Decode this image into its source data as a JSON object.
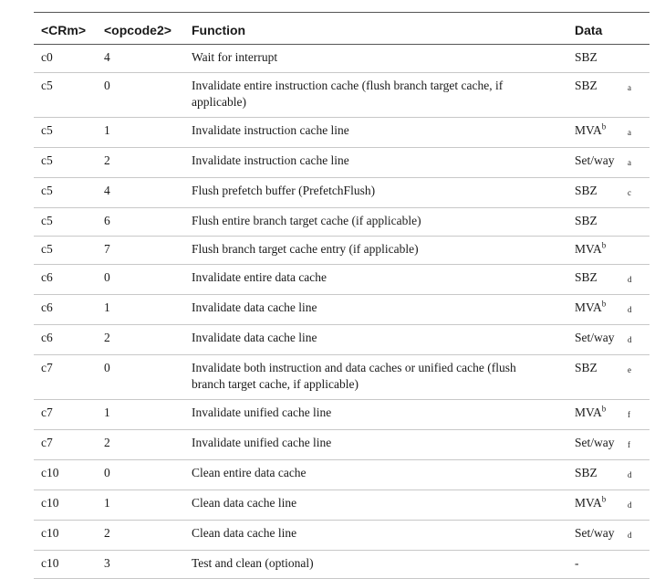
{
  "table": {
    "title": "",
    "headers": {
      "crm": "<CRm>",
      "opcode2": "<opcode2>",
      "function": "Function",
      "data": "Data"
    },
    "rows": [
      {
        "crm": "c0",
        "opcode2": "4",
        "function": "Wait for interrupt",
        "data": "SBZ",
        "data_sup": "",
        "note": ""
      },
      {
        "crm": "c5",
        "opcode2": "0",
        "function": "Invalidate entire instruction cache (flush branch target cache, if applicable)",
        "data": "SBZ",
        "data_sup": "",
        "note": "a"
      },
      {
        "crm": "c5",
        "opcode2": "1",
        "function": "Invalidate instruction cache line",
        "data": "MVA",
        "data_sup": "b",
        "note": "a"
      },
      {
        "crm": "c5",
        "opcode2": "2",
        "function": "Invalidate instruction cache line",
        "data": "Set/way",
        "data_sup": "",
        "note": "a"
      },
      {
        "crm": "c5",
        "opcode2": "4",
        "function": "Flush prefetch buffer (PrefetchFlush)",
        "data": "SBZ",
        "data_sup": "",
        "note": "c"
      },
      {
        "crm": "c5",
        "opcode2": "6",
        "function": "Flush entire branch target cache (if applicable)",
        "data": "SBZ",
        "data_sup": "",
        "note": ""
      },
      {
        "crm": "c5",
        "opcode2": "7",
        "function": "Flush branch target cache entry (if applicable)",
        "data": "MVA",
        "data_sup": "b",
        "note": ""
      },
      {
        "crm": "c6",
        "opcode2": "0",
        "function": "Invalidate entire data cache",
        "data": "SBZ",
        "data_sup": "",
        "note": "d"
      },
      {
        "crm": "c6",
        "opcode2": "1",
        "function": "Invalidate data cache line",
        "data": "MVA",
        "data_sup": "b",
        "note": "d"
      },
      {
        "crm": "c6",
        "opcode2": "2",
        "function": "Invalidate data cache line",
        "data": "Set/way",
        "data_sup": "",
        "note": "d"
      },
      {
        "crm": "c7",
        "opcode2": "0",
        "function": "Invalidate both instruction and data caches or unified cache (flush branch target cache, if applicable)",
        "data": "SBZ",
        "data_sup": "",
        "note": "e"
      },
      {
        "crm": "c7",
        "opcode2": "1",
        "function": "Invalidate unified cache line",
        "data": "MVA",
        "data_sup": "b",
        "note": "f"
      },
      {
        "crm": "c7",
        "opcode2": "2",
        "function": "Invalidate unified cache line",
        "data": "Set/way",
        "data_sup": "",
        "note": "f"
      },
      {
        "crm": "c10",
        "opcode2": "0",
        "function": "Clean entire data cache",
        "data": "SBZ",
        "data_sup": "",
        "note": "d"
      },
      {
        "crm": "c10",
        "opcode2": "1",
        "function": "Clean data cache line",
        "data": "MVA",
        "data_sup": "b",
        "note": "d"
      },
      {
        "crm": "c10",
        "opcode2": "2",
        "function": "Clean data cache line",
        "data": "Set/way",
        "data_sup": "",
        "note": "d"
      },
      {
        "crm": "c10",
        "opcode2": "3",
        "function": "Test and clean (optional)",
        "data": "-",
        "data_sup": "",
        "note": ""
      }
    ]
  }
}
